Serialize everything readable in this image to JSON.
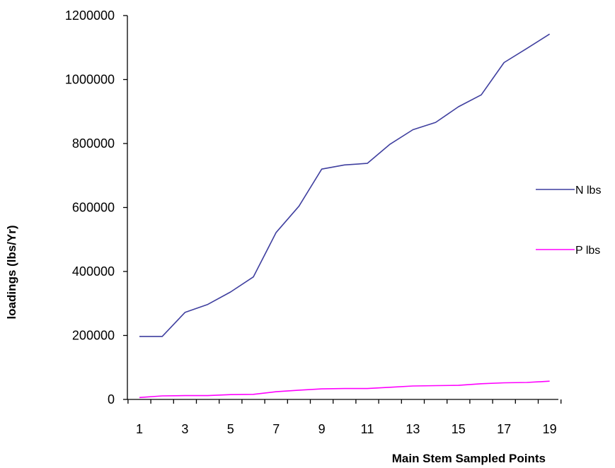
{
  "chart_data": {
    "type": "line",
    "title": "",
    "xlabel": "Main Stem Sampled Points",
    "ylabel": "loadings (lbs/Yr)",
    "x": [
      1,
      2,
      3,
      4,
      5,
      6,
      7,
      8,
      9,
      10,
      11,
      12,
      13,
      14,
      15,
      16,
      17,
      18,
      19
    ],
    "x_tick_labels": [
      "1",
      "3",
      "5",
      "7",
      "9",
      "11",
      "13",
      "15",
      "17",
      "19"
    ],
    "y_tick_labels": [
      "0",
      "200000",
      "400000",
      "600000",
      "800000",
      "1000000",
      "1200000"
    ],
    "ylim": [
      0,
      1200000
    ],
    "grid": false,
    "legend_position": "right",
    "series": [
      {
        "name": "N lbs",
        "color": "#3f3f9f",
        "values": [
          197000,
          197000,
          272000,
          297000,
          336000,
          383000,
          522000,
          604000,
          720000,
          733000,
          738000,
          798000,
          843000,
          866000,
          915000,
          952000,
          1053000,
          1097000,
          1142000
        ]
      },
      {
        "name": "P lbs",
        "color": "#ff00ff",
        "values": [
          6000,
          11000,
          12000,
          12000,
          15000,
          16000,
          24000,
          29000,
          33000,
          34000,
          34000,
          38000,
          42000,
          43000,
          44000,
          49000,
          52000,
          53000,
          57000
        ]
      }
    ]
  }
}
